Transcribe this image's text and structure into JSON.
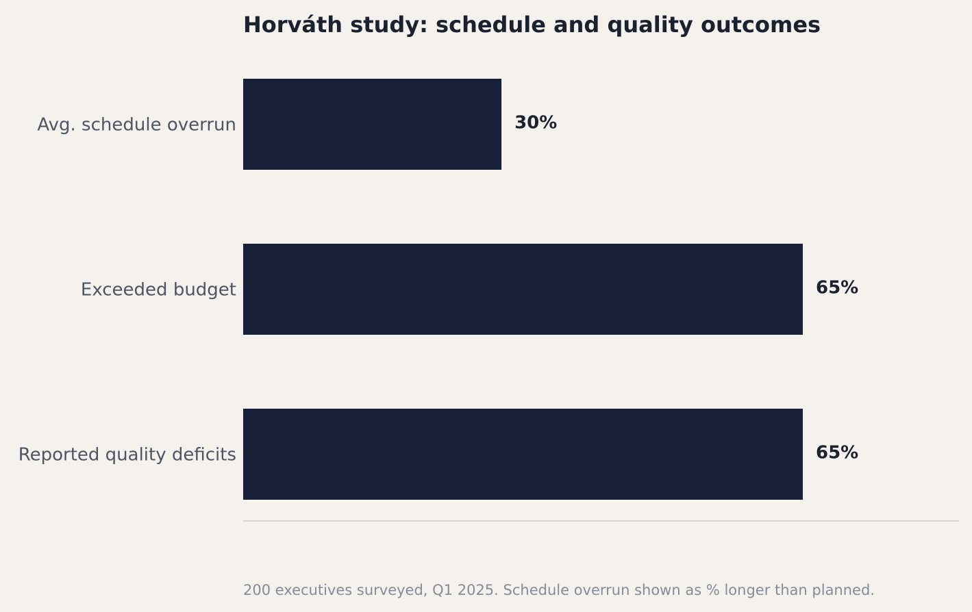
{
  "chart_data": {
    "type": "bar",
    "orientation": "horizontal",
    "title": "Horváth study: schedule and quality outcomes",
    "categories": [
      "Avg. schedule overrun",
      "Exceeded budget",
      "Reported quality deficits"
    ],
    "values": [
      30,
      65,
      65
    ],
    "value_labels": [
      "30%",
      "65%",
      "65%"
    ],
    "unit": "%",
    "xlim": [
      0,
      65
    ],
    "grid": false,
    "legend": "none",
    "bar_color": "#172036",
    "footnote": "200 executives surveyed, Q1 2025. Schedule overrun shown as % longer than planned."
  }
}
